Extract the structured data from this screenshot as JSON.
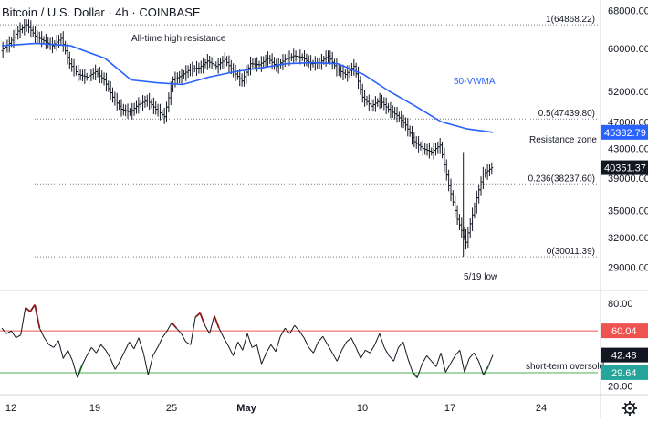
{
  "header": {
    "title": "Bitcoin / U.S. Dollar",
    "separator1": "·",
    "interval": "4h",
    "separator2": "·",
    "exchange": "COINBASE"
  },
  "chart_data": [
    {
      "type": "ohlc",
      "title": "Bitcoin / U.S. Dollar · 4h · COINBASE",
      "y_scale": "log",
      "ylim": [
        27000,
        70000
      ],
      "xlim": [
        10.5,
        26
      ],
      "x_units": "day (April 12 → May 24; x = 1 is May 1, so April 12 = -19 ... shown relative as day index where 12 = Apr 12)",
      "y_ticks": [
        29000,
        32000,
        35000,
        39000,
        43000,
        47000,
        52000,
        60000,
        68000
      ],
      "y_tick_labels": [
        "29000.00",
        "32000.00",
        "35000.00",
        "39000.00",
        "43000.00",
        "47000.00",
        "52000.00",
        "60000.00",
        "68000.00"
      ],
      "x_ticks": [
        "12",
        "19",
        "25",
        "May",
        "10",
        "17",
        "24"
      ],
      "price_path": [
        [
          0,
          59500
        ],
        [
          1,
          61000
        ],
        [
          2,
          63500
        ],
        [
          3,
          64868
        ],
        [
          4,
          62500
        ],
        [
          5,
          61500
        ],
        [
          6,
          60500
        ],
        [
          7,
          62000
        ],
        [
          8,
          57000
        ],
        [
          9,
          55000
        ],
        [
          10,
          54500
        ],
        [
          11,
          55500
        ],
        [
          12,
          54000
        ],
        [
          13,
          51000
        ],
        [
          14,
          49000
        ],
        [
          15,
          48500
        ],
        [
          16,
          49800
        ],
        [
          17,
          50500
        ],
        [
          18,
          49000
        ],
        [
          19,
          47800
        ],
        [
          20,
          54000
        ],
        [
          21,
          54800
        ],
        [
          22,
          56000
        ],
        [
          23,
          56200
        ],
        [
          24,
          57500
        ],
        [
          25,
          56500
        ],
        [
          26,
          57800
        ],
        [
          27,
          55500
        ],
        [
          28,
          53800
        ],
        [
          29,
          57000
        ],
        [
          30,
          56800
        ],
        [
          31,
          58000
        ],
        [
          32,
          56500
        ],
        [
          33,
          57800
        ],
        [
          34,
          58500
        ],
        [
          35,
          58200
        ],
        [
          36,
          57000
        ],
        [
          37,
          57200
        ],
        [
          38,
          58500
        ],
        [
          39,
          56000
        ],
        [
          40,
          55000
        ],
        [
          41,
          56500
        ],
        [
          42,
          51000
        ],
        [
          43,
          49500
        ],
        [
          44,
          50500
        ],
        [
          45,
          49000
        ],
        [
          46,
          48000
        ],
        [
          47,
          46500
        ],
        [
          48,
          44000
        ],
        [
          49,
          43000
        ],
        [
          50,
          42500
        ],
        [
          51,
          43500
        ],
        [
          52,
          38000
        ],
        [
          53,
          34000
        ],
        [
          54,
          31500
        ],
        [
          55,
          35500
        ],
        [
          56,
          39500
        ],
        [
          57,
          40351
        ]
      ],
      "vwma_path": [
        [
          0,
          60500
        ],
        [
          4,
          61000
        ],
        [
          8,
          60500
        ],
        [
          12,
          58000
        ],
        [
          15,
          54000
        ],
        [
          18,
          53500
        ],
        [
          21,
          53200
        ],
        [
          24,
          54500
        ],
        [
          27,
          55500
        ],
        [
          30,
          56200
        ],
        [
          33,
          57000
        ],
        [
          36,
          57200
        ],
        [
          39,
          57000
        ],
        [
          42,
          55000
        ],
        [
          45,
          52000
        ],
        [
          48,
          49500
        ],
        [
          51,
          47000
        ],
        [
          54,
          45900
        ],
        [
          57,
          45382
        ]
      ],
      "fib_levels": [
        {
          "label": "1(64868.22)",
          "value": 64868.22
        },
        {
          "label": "0.5(47439.80)",
          "value": 47439.8
        },
        {
          "label": "0.236(38237.60)",
          "value": 38237.6
        },
        {
          "label": "0(30011.39)",
          "value": 30011.39
        }
      ],
      "annotations": {
        "ath": "All-time high resistance",
        "vwma": "50-VWMA",
        "resistance": "Resistance zone",
        "low": "5/19 low"
      },
      "price_badges": [
        {
          "value": "45382.79",
          "color": "#2962ff"
        },
        {
          "value": "40351.37",
          "color": "#131722"
        }
      ]
    },
    {
      "type": "line",
      "title": "",
      "ylim": [
        15,
        88
      ],
      "y_ticks": [
        20.0,
        80.0
      ],
      "y_tick_labels": [
        "20.00",
        "80.00"
      ],
      "rsi_path": [
        [
          0,
          62
        ],
        [
          1,
          58
        ],
        [
          2,
          60
        ],
        [
          3,
          55
        ],
        [
          4,
          57
        ],
        [
          5,
          77
        ],
        [
          6,
          74
        ],
        [
          7,
          79
        ],
        [
          8,
          62
        ],
        [
          9,
          55
        ],
        [
          10,
          50
        ],
        [
          11,
          48
        ],
        [
          12,
          53
        ],
        [
          13,
          40
        ],
        [
          14,
          46
        ],
        [
          15,
          38
        ],
        [
          16,
          26
        ],
        [
          17,
          35
        ],
        [
          18,
          42
        ],
        [
          19,
          48
        ],
        [
          20,
          44
        ],
        [
          21,
          50
        ],
        [
          22,
          46
        ],
        [
          23,
          40
        ],
        [
          24,
          32
        ],
        [
          25,
          38
        ],
        [
          26,
          45
        ],
        [
          27,
          52
        ],
        [
          28,
          47
        ],
        [
          29,
          55
        ],
        [
          30,
          44
        ],
        [
          31,
          28
        ],
        [
          32,
          42
        ],
        [
          33,
          48
        ],
        [
          34,
          55
        ],
        [
          35,
          60
        ],
        [
          36,
          66
        ],
        [
          37,
          62
        ],
        [
          38,
          58
        ],
        [
          39,
          52
        ],
        [
          40,
          50
        ],
        [
          41,
          70
        ],
        [
          42,
          73
        ],
        [
          43,
          64
        ],
        [
          44,
          58
        ],
        [
          45,
          71
        ],
        [
          46,
          62
        ],
        [
          47,
          55
        ],
        [
          48,
          49
        ],
        [
          49,
          42
        ],
        [
          50,
          52
        ],
        [
          51,
          46
        ],
        [
          52,
          58
        ],
        [
          53,
          48
        ],
        [
          54,
          50
        ],
        [
          55,
          36
        ],
        [
          56,
          44
        ],
        [
          57,
          50
        ],
        [
          58,
          45
        ],
        [
          59,
          56
        ],
        [
          60,
          62
        ],
        [
          61,
          58
        ],
        [
          62,
          64
        ],
        [
          63,
          60
        ],
        [
          64,
          55
        ],
        [
          65,
          48
        ],
        [
          66,
          44
        ],
        [
          67,
          52
        ],
        [
          68,
          56
        ],
        [
          69,
          50
        ],
        [
          70,
          44
        ],
        [
          71,
          38
        ],
        [
          72,
          46
        ],
        [
          73,
          52
        ],
        [
          74,
          55
        ],
        [
          75,
          48
        ],
        [
          76,
          40
        ],
        [
          77,
          46
        ],
        [
          78,
          44
        ],
        [
          79,
          50
        ],
        [
          80,
          58
        ],
        [
          81,
          48
        ],
        [
          82,
          42
        ],
        [
          83,
          38
        ],
        [
          84,
          48
        ],
        [
          85,
          52
        ],
        [
          86,
          40
        ],
        [
          87,
          30
        ],
        [
          88,
          26
        ],
        [
          89,
          36
        ],
        [
          90,
          42
        ],
        [
          91,
          38
        ],
        [
          92,
          34
        ],
        [
          93,
          44
        ],
        [
          94,
          30
        ],
        [
          95,
          36
        ],
        [
          96,
          42
        ],
        [
          97,
          46
        ],
        [
          98,
          30
        ],
        [
          99,
          40
        ],
        [
          100,
          44
        ],
        [
          101,
          38
        ],
        [
          102,
          28
        ],
        [
          103,
          34
        ],
        [
          104,
          42.48
        ]
      ],
      "upper_line": 60.04,
      "lower_line": 29.64,
      "annotations": {
        "oversold": "short-term oversold"
      },
      "price_badges": [
        {
          "value": "60.04",
          "color": "#ef5350"
        },
        {
          "value": "42.48",
          "color": "#131722"
        },
        {
          "value": "29.64",
          "color": "#26a69a"
        }
      ]
    }
  ],
  "colors": {
    "price": "#131722",
    "vwma": "#2962ff",
    "upper": "#ef5350",
    "lower": "#4caf50",
    "rsi_hot": "#8b1a1a",
    "rsi_cold": "#1b5e20",
    "grid_dotted": "#787b86"
  },
  "toolbar": {
    "settings_icon": "gear-icon"
  }
}
